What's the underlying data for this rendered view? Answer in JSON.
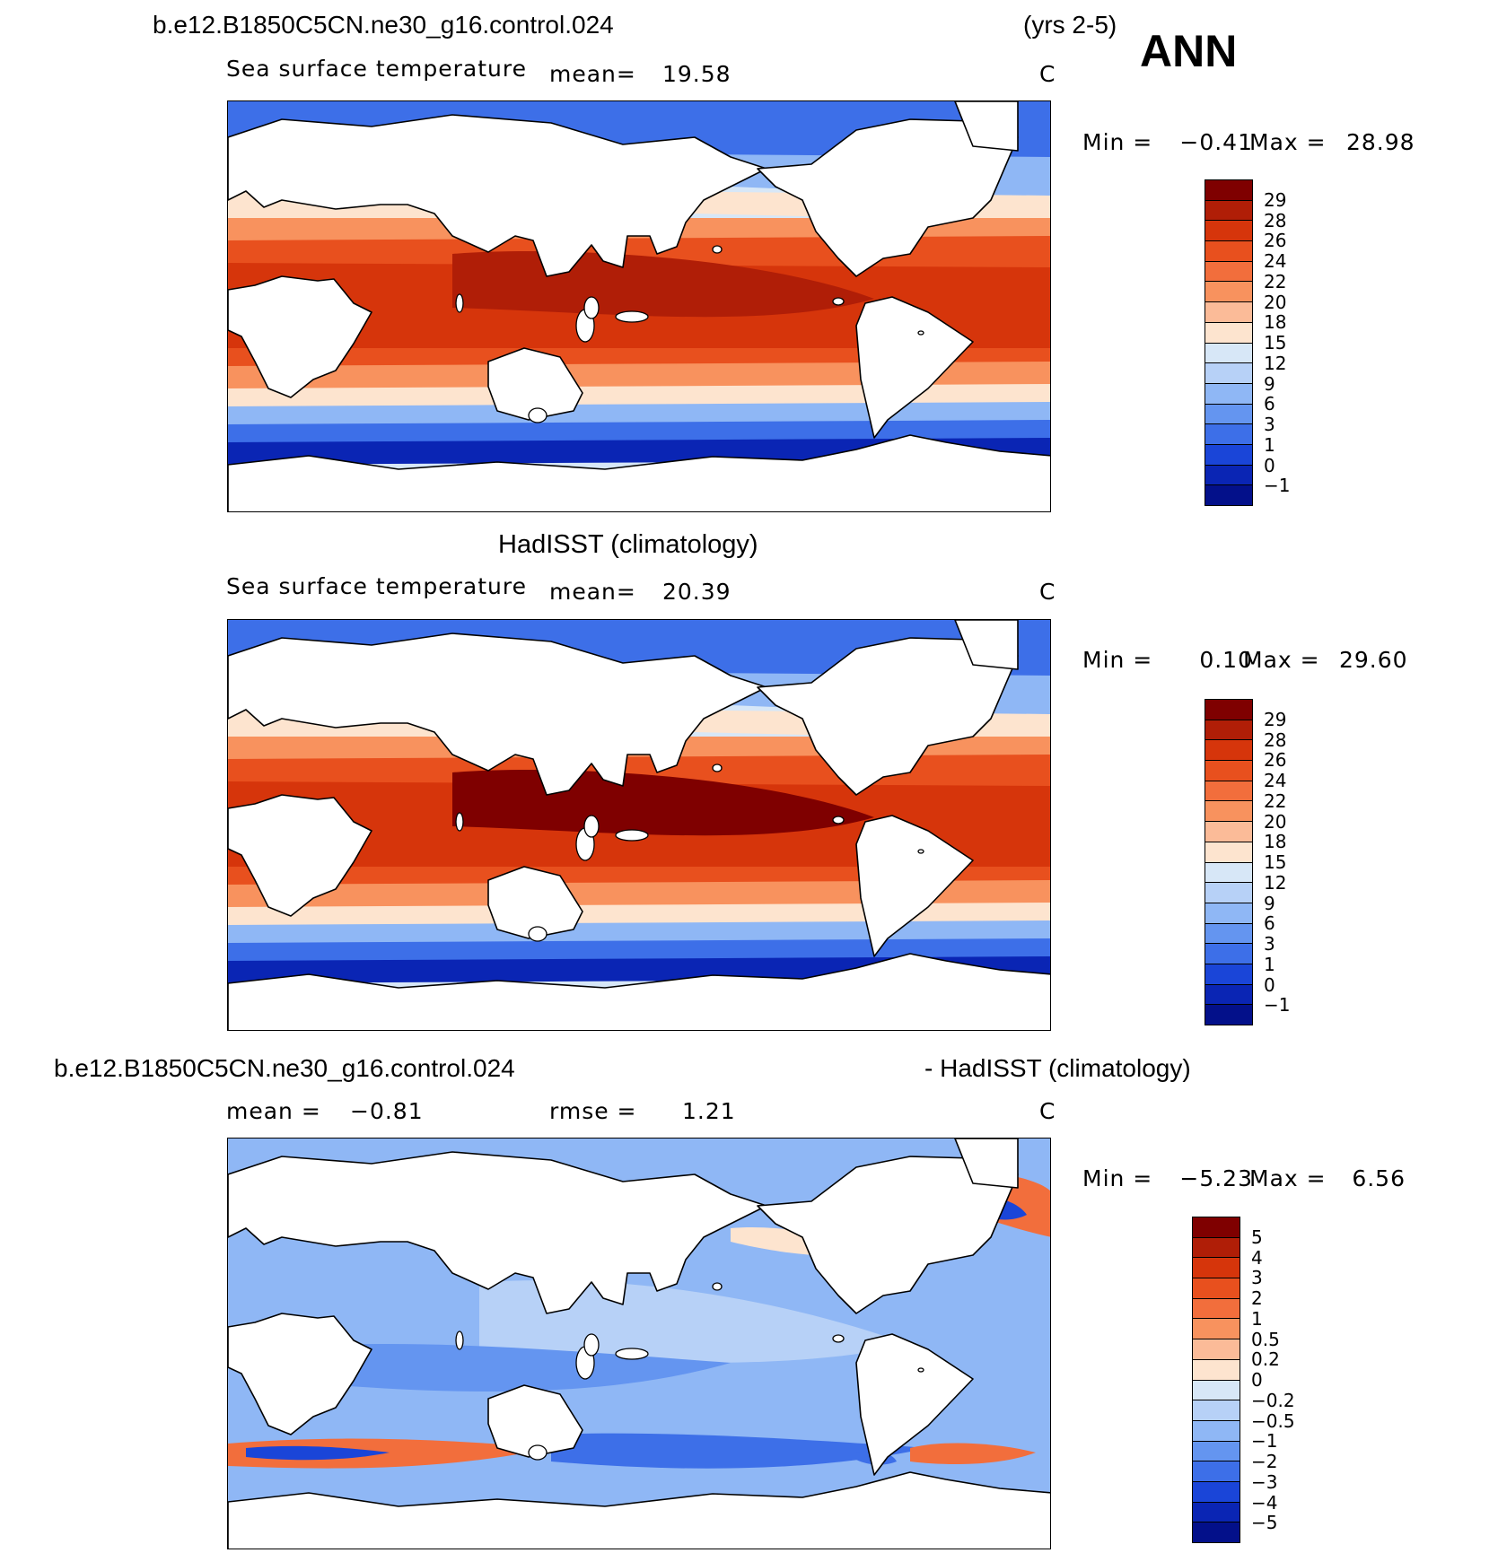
{
  "header": {
    "case_title": "b.e12.B1850C5CN.ne30_g16.control.024",
    "years": "(yrs 2-5)",
    "season": "ANN"
  },
  "chart_data": [
    {
      "type": "heatmap",
      "title": "b.e12.B1850C5CN.ne30_g16.control.024",
      "variable": "Sea surface temperature",
      "mean_label": "mean=",
      "mean_value": "19.58",
      "units": "C",
      "min_label": "Min =",
      "min_value": "−0.41",
      "max_label": "Max =",
      "max_value": "28.98",
      "colorbar_levels": [
        "29",
        "28",
        "26",
        "24",
        "22",
        "20",
        "18",
        "15",
        "12",
        "9",
        "6",
        "3",
        "1",
        "0",
        "−1"
      ],
      "colorbar_colors": [
        "#7f0000",
        "#b01e07",
        "#d6350b",
        "#e8501e",
        "#f26e3c",
        "#f8925e",
        "#fbbb98",
        "#fde4cf",
        "#d7e7f7",
        "#b7d1f7",
        "#8fb7f5",
        "#6495f0",
        "#3d6fe8",
        "#1a45d8",
        "#0a25b4",
        "#03108a"
      ]
    },
    {
      "type": "heatmap",
      "title": "HadISST (climatology)",
      "variable": "Sea surface temperature",
      "mean_label": "mean=",
      "mean_value": "20.39",
      "units": "C",
      "min_label": "Min =",
      "min_value": "0.10",
      "max_label": "Max =",
      "max_value": "29.60",
      "colorbar_levels": [
        "29",
        "28",
        "26",
        "24",
        "22",
        "20",
        "18",
        "15",
        "12",
        "9",
        "6",
        "3",
        "1",
        "0",
        "−1"
      ],
      "colorbar_colors": [
        "#7f0000",
        "#b01e07",
        "#d6350b",
        "#e8501e",
        "#f26e3c",
        "#f8925e",
        "#fbbb98",
        "#fde4cf",
        "#d7e7f7",
        "#b7d1f7",
        "#8fb7f5",
        "#6495f0",
        "#3d6fe8",
        "#1a45d8",
        "#0a25b4",
        "#03108a"
      ]
    },
    {
      "type": "heatmap",
      "title_left": "b.e12.B1850C5CN.ne30_g16.control.024",
      "title_right": "- HadISST (climatology)",
      "mean_label": "mean =",
      "mean_value": "−0.81",
      "rmse_label": "rmse =",
      "rmse_value": "1.21",
      "units": "C",
      "min_label": "Min =",
      "min_value": "−5.23",
      "max_label": "Max =",
      "max_value": "6.56",
      "colorbar_levels": [
        "5",
        "4",
        "3",
        "2",
        "1",
        "0.5",
        "0.2",
        "0",
        "−0.2",
        "−0.5",
        "−1",
        "−2",
        "−3",
        "−4",
        "−5"
      ],
      "colorbar_colors": [
        "#7f0000",
        "#b01e07",
        "#d6350b",
        "#e8501e",
        "#f26e3c",
        "#f8925e",
        "#fbbb98",
        "#fde4cf",
        "#d7e7f7",
        "#b7d1f7",
        "#8fb7f5",
        "#6495f0",
        "#3d6fe8",
        "#1a45d8",
        "#0a25b4",
        "#03108a"
      ]
    }
  ]
}
